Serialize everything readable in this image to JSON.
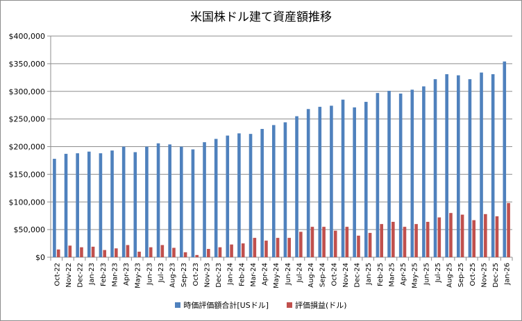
{
  "chart_data": {
    "type": "bar",
    "title": "米国株ドル建て資産額推移",
    "ylim": [
      0,
      400000
    ],
    "ytick_labels": [
      "$0",
      "$50,000",
      "$100,000",
      "$150,000",
      "$200,000",
      "$250,000",
      "$300,000",
      "$350,000",
      "$400,000"
    ],
    "ytick_values": [
      0,
      50000,
      100000,
      150000,
      200000,
      250000,
      300000,
      350000,
      400000
    ],
    "grid": true,
    "legend_position": "bottom",
    "categories": [
      "Oct-22",
      "Nov-22",
      "Dec-22",
      "Jan-23",
      "Feb-23",
      "Mar-23",
      "Apr-23",
      "May-23",
      "Jun-23",
      "Jul-23",
      "Aug-23",
      "Sep-23",
      "Oct-23",
      "Nov-23",
      "Dec-23",
      "Jan-24",
      "Feb-24",
      "Mar-24",
      "Apr-24",
      "May-24",
      "Jun-24",
      "Jul-24",
      "Aug-24",
      "Sep-24",
      "Oct-24",
      "Nov-24",
      "Dec-24",
      "Jan-25",
      "Feb-25",
      "Mar-25",
      "Apr-25",
      "May-25",
      "Jun-25",
      "Jul-25",
      "Aug-25",
      "Sep-25",
      "Oct-25",
      "Nov-25",
      "Dec-25",
      "Jan-26"
    ],
    "series": [
      {
        "name": "時価評価額合計[USドル]",
        "color": "#4f81bd",
        "values": [
          178000,
          187000,
          188000,
          191000,
          188000,
          193000,
          200000,
          190000,
          200000,
          206000,
          204000,
          200000,
          195000,
          208000,
          214000,
          220000,
          224000,
          223000,
          232000,
          239000,
          244000,
          255000,
          268000,
          272000,
          274000,
          285000,
          271000,
          281000,
          297000,
          301000,
          296000,
          303000,
          309000,
          322000,
          331000,
          329000,
          322000,
          334000,
          331000,
          354000
        ]
      },
      {
        "name": "評価損益(ドル)",
        "color": "#c0504d",
        "values": [
          14000,
          21000,
          18000,
          19000,
          13000,
          16000,
          22000,
          10000,
          18000,
          22000,
          17000,
          9000,
          4000,
          15000,
          18000,
          23000,
          25000,
          35000,
          30000,
          35000,
          35000,
          46000,
          55000,
          55000,
          48000,
          55000,
          39000,
          44000,
          60000,
          64000,
          55000,
          60000,
          64000,
          72000,
          80000,
          77000,
          67000,
          78000,
          74000,
          98000
        ]
      }
    ]
  }
}
